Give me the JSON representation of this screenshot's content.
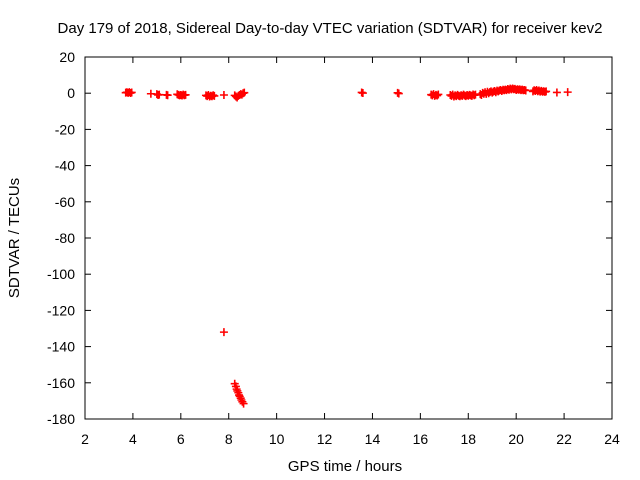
{
  "chart_data": {
    "type": "scatter",
    "title": "Day 179 of 2018, Sidereal Day-to-day VTEC variation (SDTVAR) for receiver kev2",
    "xlabel": "GPS time / hours",
    "ylabel": "SDTVAR / TECUs",
    "xlim": [
      2,
      24
    ],
    "ylim": [
      -180,
      20
    ],
    "xticks": [
      2,
      4,
      6,
      8,
      10,
      12,
      14,
      16,
      18,
      20,
      22,
      24
    ],
    "yticks": [
      20,
      0,
      -20,
      -40,
      -60,
      -80,
      -100,
      -120,
      -140,
      -160,
      -180
    ],
    "grid": false,
    "marker": "+",
    "color": "#ff0000",
    "series": [
      {
        "name": "SDTVAR",
        "points": [
          [
            3.7,
            0.3
          ],
          [
            3.75,
            0.5
          ],
          [
            3.8,
            0.2
          ],
          [
            3.85,
            0.6
          ],
          [
            3.9,
            0.1
          ],
          [
            3.95,
            0.4
          ],
          [
            4.75,
            -0.3
          ],
          [
            5.0,
            -0.5
          ],
          [
            5.05,
            -1.0
          ],
          [
            5.1,
            -0.8
          ],
          [
            5.4,
            -0.9
          ],
          [
            5.45,
            -1.1
          ],
          [
            5.85,
            -0.6
          ],
          [
            5.9,
            -0.9
          ],
          [
            5.95,
            -1.2
          ],
          [
            6.0,
            -1.0
          ],
          [
            6.05,
            -1.3
          ],
          [
            6.1,
            -0.8
          ],
          [
            6.15,
            -1.1
          ],
          [
            6.2,
            -0.9
          ],
          [
            7.05,
            -1.2
          ],
          [
            7.1,
            -1.6
          ],
          [
            7.15,
            -1.0
          ],
          [
            7.2,
            -1.8
          ],
          [
            7.25,
            -1.4
          ],
          [
            7.3,
            -1.7
          ],
          [
            7.35,
            -1.1
          ],
          [
            7.4,
            -1.5
          ],
          [
            7.8,
            -1.0
          ],
          [
            7.8,
            -132.0
          ],
          [
            8.25,
            -1.2
          ],
          [
            8.3,
            -1.8
          ],
          [
            8.35,
            -2.4
          ],
          [
            8.4,
            -1.5
          ],
          [
            8.45,
            -1.0
          ],
          [
            8.5,
            -0.5
          ],
          [
            8.55,
            -0.8
          ],
          [
            8.6,
            0.0
          ],
          [
            8.65,
            0.3
          ],
          [
            8.25,
            -160.5
          ],
          [
            8.3,
            -162.0
          ],
          [
            8.33,
            -163.5
          ],
          [
            8.36,
            -164.5
          ],
          [
            8.4,
            -165.5
          ],
          [
            8.43,
            -166.8
          ],
          [
            8.46,
            -167.5
          ],
          [
            8.5,
            -168.5
          ],
          [
            8.53,
            -169.5
          ],
          [
            8.57,
            -170.5
          ],
          [
            8.62,
            -171.5
          ],
          [
            13.55,
            0.4
          ],
          [
            13.6,
            0.1
          ],
          [
            15.05,
            0.2
          ],
          [
            15.1,
            -0.2
          ],
          [
            16.45,
            -0.8
          ],
          [
            16.5,
            -1.2
          ],
          [
            16.55,
            -0.5
          ],
          [
            16.6,
            -1.5
          ],
          [
            16.65,
            -0.9
          ],
          [
            16.7,
            -1.3
          ],
          [
            16.75,
            -0.7
          ],
          [
            17.25,
            -1.0
          ],
          [
            17.3,
            -1.5
          ],
          [
            17.35,
            -0.8
          ],
          [
            17.4,
            -1.8
          ],
          [
            17.45,
            -1.2
          ],
          [
            17.5,
            -1.6
          ],
          [
            17.55,
            -0.9
          ],
          [
            17.6,
            -1.4
          ],
          [
            17.65,
            -1.7
          ],
          [
            17.7,
            -1.1
          ],
          [
            17.75,
            -1.5
          ],
          [
            17.8,
            -0.8
          ],
          [
            17.85,
            -1.3
          ],
          [
            17.9,
            -1.6
          ],
          [
            17.95,
            -1.0
          ],
          [
            18.0,
            -1.4
          ],
          [
            18.05,
            -0.9
          ],
          [
            18.1,
            -1.2
          ],
          [
            18.15,
            -1.5
          ],
          [
            18.2,
            -0.7
          ],
          [
            18.25,
            -1.1
          ],
          [
            18.3,
            -0.8
          ],
          [
            18.5,
            -0.5
          ],
          [
            18.55,
            -1.0
          ],
          [
            18.6,
            0.2
          ],
          [
            18.65,
            -0.3
          ],
          [
            18.7,
            0.5
          ],
          [
            18.75,
            -0.4
          ],
          [
            18.8,
            0.8
          ],
          [
            18.85,
            0.0
          ],
          [
            18.9,
            0.6
          ],
          [
            18.95,
            1.0
          ],
          [
            19.0,
            0.3
          ],
          [
            19.05,
            0.9
          ],
          [
            19.1,
            1.2
          ],
          [
            19.15,
            0.5
          ],
          [
            19.2,
            1.4
          ],
          [
            19.25,
            1.0
          ],
          [
            19.3,
            1.5
          ],
          [
            19.35,
            1.8
          ],
          [
            19.4,
            1.2
          ],
          [
            19.45,
            1.9
          ],
          [
            19.5,
            1.6
          ],
          [
            19.55,
            2.0
          ],
          [
            19.6,
            1.7
          ],
          [
            19.65,
            2.3
          ],
          [
            19.7,
            1.9
          ],
          [
            19.75,
            2.5
          ],
          [
            19.8,
            2.1
          ],
          [
            19.85,
            2.6
          ],
          [
            19.9,
            2.2
          ],
          [
            19.95,
            2.4
          ],
          [
            20.0,
            1.8
          ],
          [
            20.05,
            2.2
          ],
          [
            20.1,
            1.9
          ],
          [
            20.15,
            2.1
          ],
          [
            20.2,
            1.7
          ],
          [
            20.25,
            2.0
          ],
          [
            20.3,
            1.6
          ],
          [
            20.35,
            1.8
          ],
          [
            20.4,
            1.5
          ],
          [
            20.7,
            1.0
          ],
          [
            20.75,
            1.6
          ],
          [
            20.8,
            1.2
          ],
          [
            20.85,
            1.8
          ],
          [
            20.9,
            1.1
          ],
          [
            20.95,
            1.5
          ],
          [
            21.0,
            0.9
          ],
          [
            21.05,
            1.3
          ],
          [
            21.1,
            0.8
          ],
          [
            21.15,
            1.1
          ],
          [
            21.2,
            0.7
          ],
          [
            21.25,
            1.0
          ],
          [
            21.7,
            0.4
          ],
          [
            22.15,
            0.6
          ]
        ]
      }
    ]
  }
}
